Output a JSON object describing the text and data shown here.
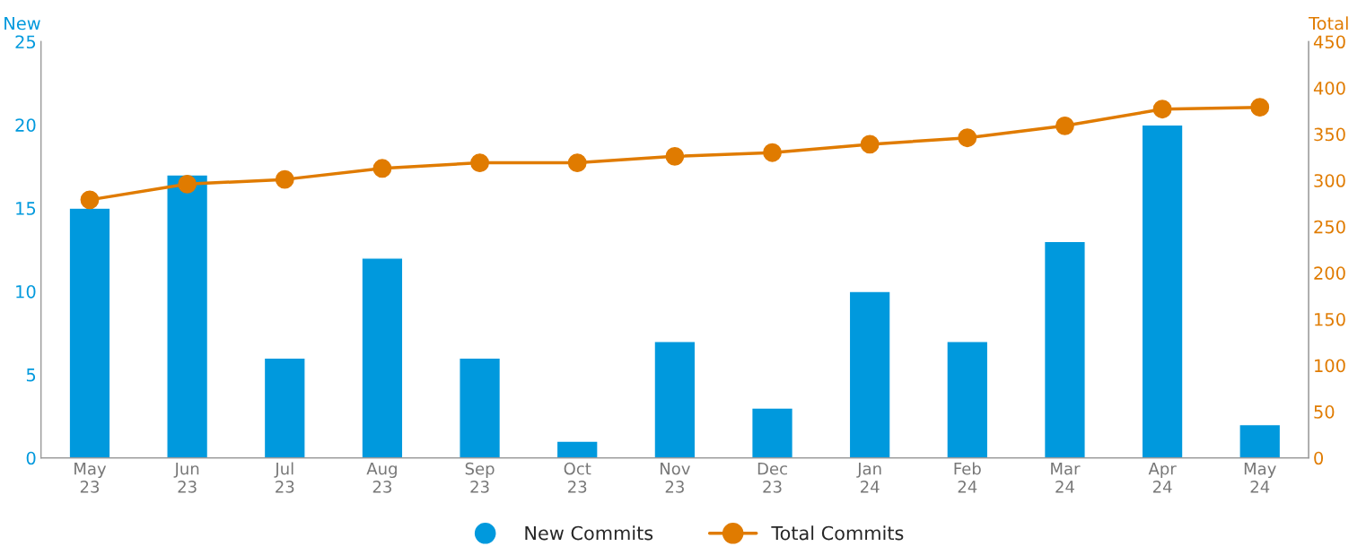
{
  "chart_data": {
    "type": "bar",
    "categories": [
      "May\n23",
      "Jun\n23",
      "Jul\n23",
      "Aug\n23",
      "Sep\n23",
      "Oct\n23",
      "Nov\n23",
      "Dec\n23",
      "Jan\n24",
      "Feb\n24",
      "Mar\n24",
      "Apr\n24",
      "May\n24"
    ],
    "ylabel": "New",
    "y2label": "Total",
    "ylim": [
      0,
      25
    ],
    "yticks": [
      0,
      5,
      10,
      15,
      20,
      25
    ],
    "y2lim": [
      0,
      450
    ],
    "y2ticks": [
      0,
      50,
      100,
      150,
      200,
      250,
      300,
      350,
      400,
      450
    ],
    "series": [
      {
        "name": "New Commits",
        "color": "#0099dd",
        "values": [
          15,
          17,
          6,
          12,
          6,
          1,
          7,
          3,
          10,
          7,
          13,
          20,
          2
        ]
      },
      {
        "name": "Total Commits",
        "type": "line",
        "axis": "y2",
        "color": "#e07b00",
        "marker": "circle",
        "values": [
          279,
          296,
          301,
          313,
          319,
          319,
          326,
          330,
          339,
          346,
          359,
          377,
          379
        ]
      }
    ],
    "legend": "bottom",
    "grid": false
  }
}
